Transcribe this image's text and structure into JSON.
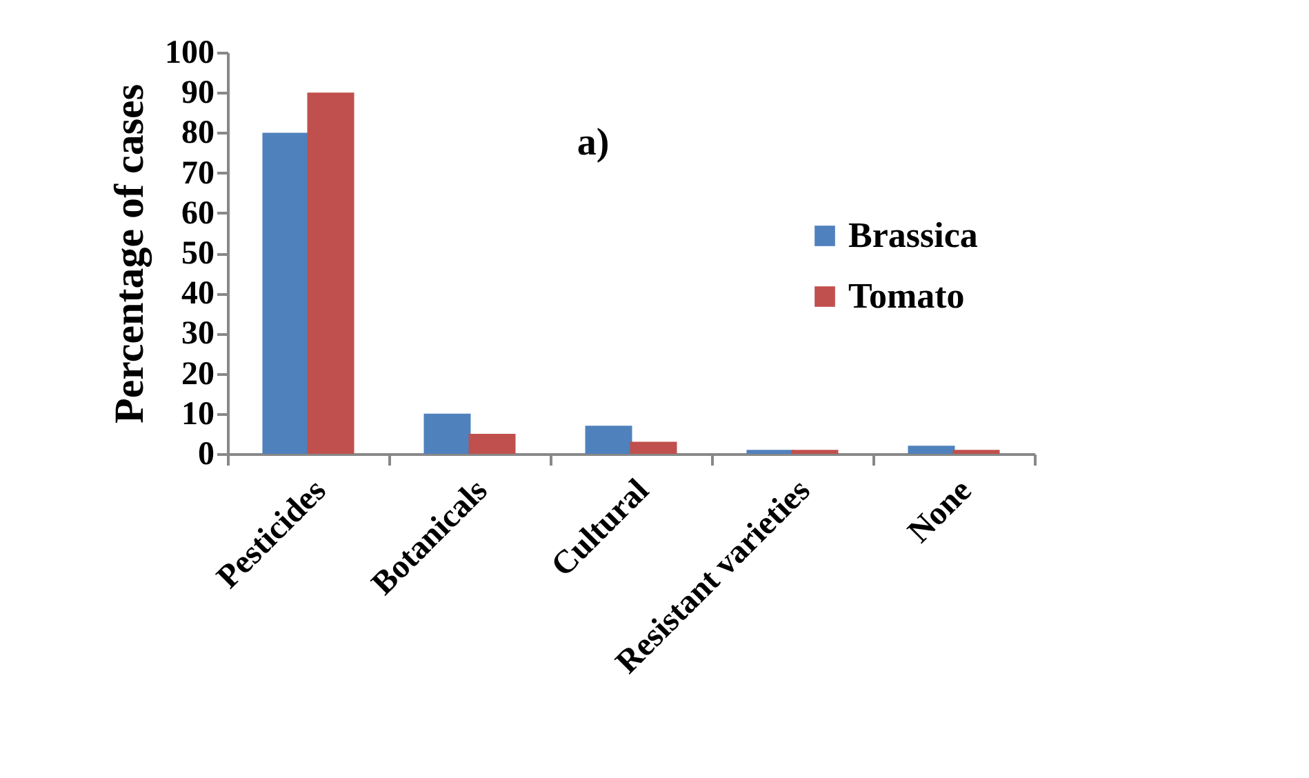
{
  "chart_data": {
    "type": "bar",
    "ylabel": "Percentage of cases",
    "annotations": [
      "a)"
    ],
    "categories": [
      "Pesticides",
      "Botanicals",
      "Cultural",
      "Resistant varieties",
      "None"
    ],
    "series": [
      {
        "name": "Brassica",
        "color": "#4f81bd",
        "values": [
          80,
          10,
          7,
          1,
          2
        ]
      },
      {
        "name": "Tomato",
        "color": "#c0504d",
        "values": [
          90,
          5,
          3,
          1,
          1
        ]
      }
    ],
    "ylim": [
      0,
      100
    ],
    "yticks": [
      0,
      10,
      20,
      30,
      40,
      50,
      60,
      70,
      80,
      90,
      100
    ],
    "grid": false,
    "legend": "right"
  }
}
